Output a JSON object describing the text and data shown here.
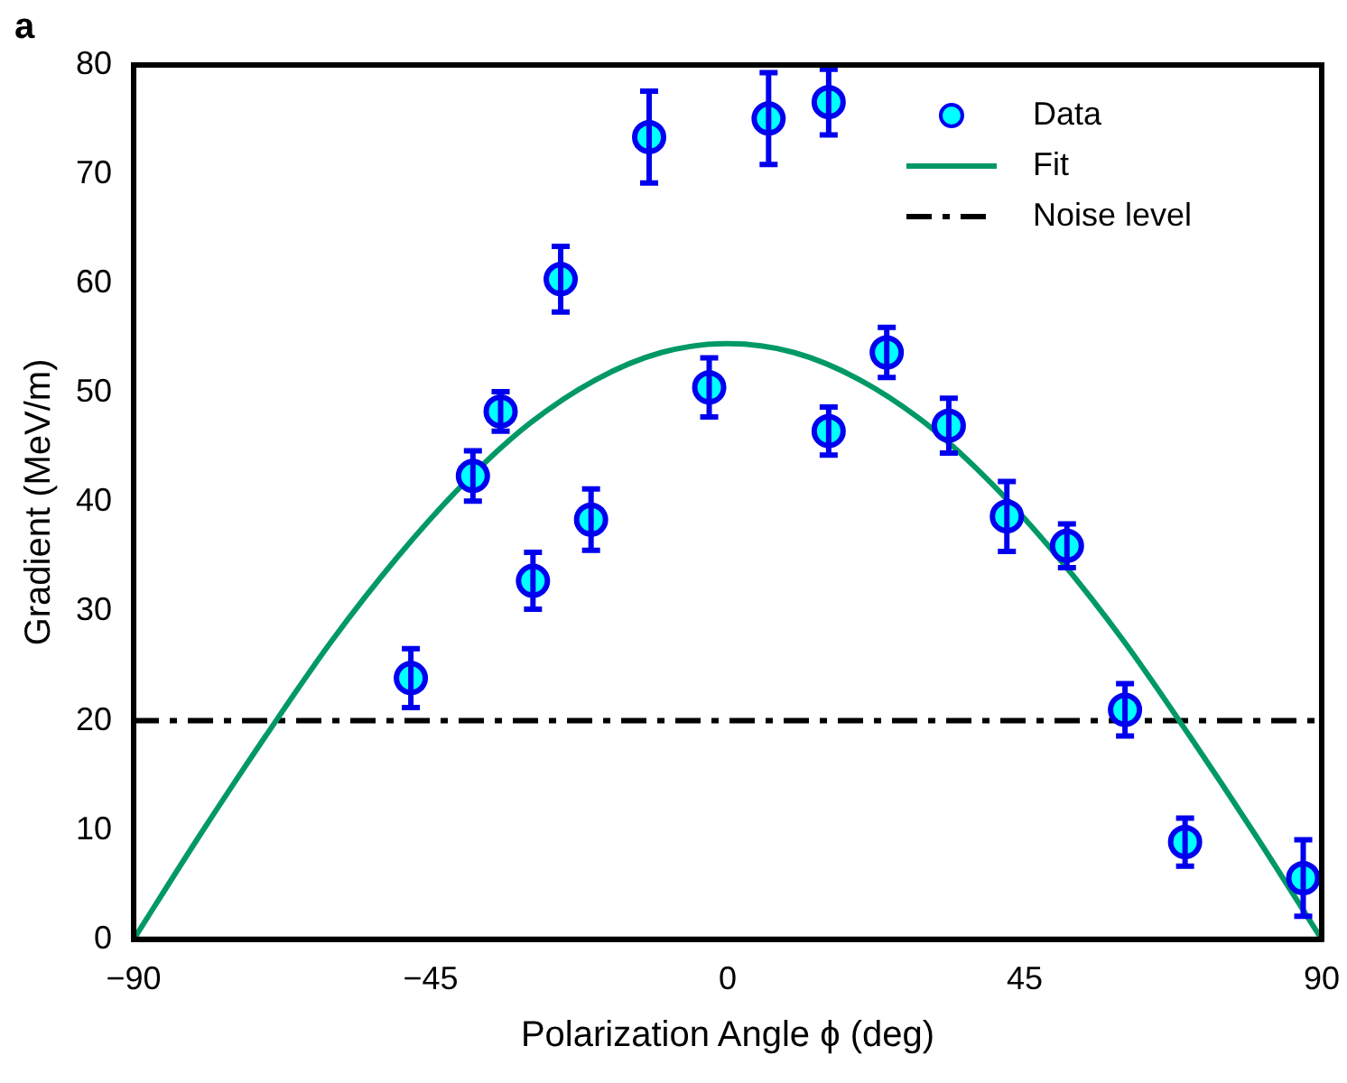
{
  "chart_data": {
    "type": "scatter",
    "xlabel": "Polarization Angle ϕ (deg)",
    "ylabel": "Gradient (MeV/m)",
    "annotations": [
      "a"
    ],
    "xlim": [
      -90,
      90
    ],
    "xticks": [
      {
        "value": -90,
        "label": "−90"
      },
      {
        "value": -45,
        "label": "−45"
      },
      0,
      45,
      90
    ],
    "ylim": [
      0,
      80
    ],
    "yticks": [
      0,
      10,
      20,
      30,
      40,
      50,
      60,
      70,
      80
    ],
    "grid": false,
    "legend": "top right",
    "marker": "circle",
    "series": [
      {
        "name": "Data",
        "type": "scatter",
        "color": "#00ffff",
        "x": [
          -48,
          -38.6,
          -34.4,
          -29.5,
          -25.3,
          -20.7,
          -11.9,
          -2.8,
          6.2,
          15.3,
          15.3,
          24.1,
          33.5,
          42.3,
          51.4,
          60.2,
          69.3,
          87.2
        ],
        "values": [
          23.9,
          42.4,
          48.3,
          32.8,
          60.4,
          38.4,
          73.4,
          50.5,
          75.1,
          76.6,
          46.5,
          53.7,
          47.0,
          38.7,
          36.0,
          21.0,
          8.9,
          5.6
        ],
        "errors": [
          2.7,
          2.3,
          1.8,
          2.6,
          3,
          2.8,
          4.2,
          2.7,
          4.2,
          3,
          2.2,
          2.3,
          2.5,
          3.2,
          2,
          2.4,
          2.2,
          3.5
        ]
      },
      {
        "name": "Fit",
        "type": "line",
        "color": "#009966",
        "marker": "none",
        "line_style": "solid",
        "x": [
          -90,
          -80,
          -70,
          -60,
          -50,
          -40,
          -30,
          -20,
          -10,
          0,
          10,
          20,
          30,
          40,
          50,
          60,
          70,
          80,
          90
        ],
        "values": [
          0,
          9.5,
          18.6,
          27.3,
          35.0,
          41.7,
          47.2,
          51.2,
          53.7,
          54.5,
          53.7,
          51.2,
          47.2,
          41.7,
          35.0,
          27.3,
          18.6,
          9.5,
          0
        ]
      },
      {
        "name": "Noise level",
        "type": "line",
        "color": "#000000",
        "marker": "none",
        "line_style": "dashdot",
        "x": [
          -90,
          90
        ],
        "values": [
          20,
          20
        ]
      }
    ]
  }
}
